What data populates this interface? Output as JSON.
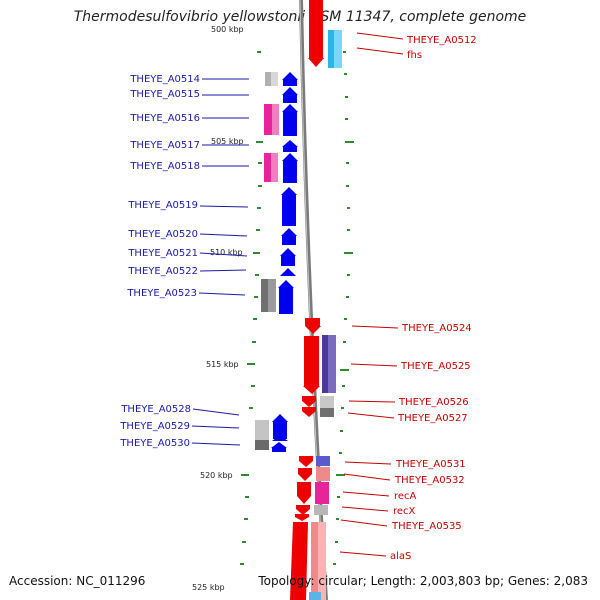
{
  "title": "Thermodesulfovibrio yellowstonii DSM 11347, complete genome",
  "footer": {
    "accession": "Accession: NC_011296",
    "topology": "Topology: circular; Length: 2,003,803 bp; Genes: 2,083"
  },
  "colors": {
    "forward_gene": "#0000ee",
    "reverse_gene": "#ee0000",
    "forward_label": "#1a1aa8",
    "reverse_label": "#c80000",
    "backbone": "#808080",
    "tick": "#2e8b2e",
    "cog_magenta": "#e8249a",
    "cog_grey": "#a0a0a0",
    "cog_cyan": "#2ab4e8",
    "cog_purple": "#4b3a96",
    "cog_salmon": "#f08a8a"
  },
  "tick_labels": [
    "500 kbp",
    "505 kbp",
    "510 kbp",
    "515 kbp",
    "520 kbp",
    "525 kbp"
  ],
  "forward_genes": [
    "THEYE_A0514",
    "THEYE_A0515",
    "THEYE_A0516",
    "THEYE_A0517",
    "THEYE_A0518",
    "THEYE_A0519",
    "THEYE_A0520",
    "THEYE_A0521",
    "THEYE_A0522",
    "THEYE_A0523",
    "THEYE_A0528",
    "THEYE_A0529",
    "THEYE_A0530"
  ],
  "reverse_genes": [
    "THEYE_A0512",
    "fhs",
    "THEYE_A0524",
    "THEYE_A0525",
    "THEYE_A0526",
    "THEYE_A0527",
    "THEYE_A0531",
    "THEYE_A0532",
    "recA",
    "recX",
    "THEYE_A0535",
    "alaS"
  ]
}
